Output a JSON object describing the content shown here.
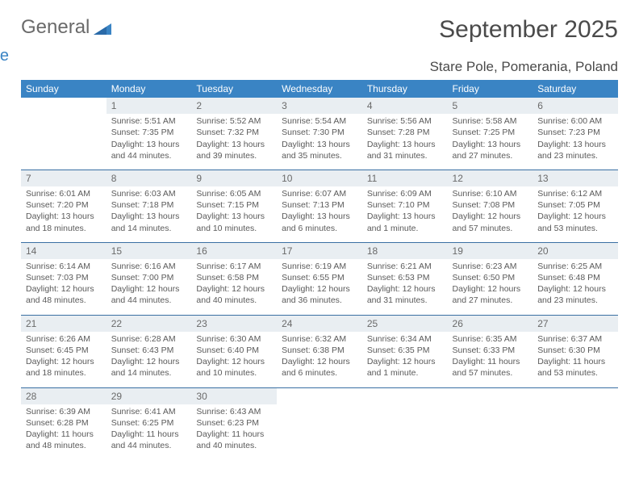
{
  "logo": {
    "text1": "General",
    "text2": "Blue"
  },
  "title": "September 2025",
  "location": "Stare Pole, Pomerania, Poland",
  "colors": {
    "header_bg": "#3a84c4",
    "header_text": "#ffffff",
    "band_bg": "#e9eef2",
    "band_border": "#3a6fa3",
    "body_text": "#5a5a5a",
    "title_text": "#4a4a4a"
  },
  "weekdays": [
    "Sunday",
    "Monday",
    "Tuesday",
    "Wednesday",
    "Thursday",
    "Friday",
    "Saturday"
  ],
  "weeks": [
    [
      null,
      {
        "n": "1",
        "sr": "Sunrise: 5:51 AM",
        "ss": "Sunset: 7:35 PM",
        "dl": "Daylight: 13 hours and 44 minutes."
      },
      {
        "n": "2",
        "sr": "Sunrise: 5:52 AM",
        "ss": "Sunset: 7:32 PM",
        "dl": "Daylight: 13 hours and 39 minutes."
      },
      {
        "n": "3",
        "sr": "Sunrise: 5:54 AM",
        "ss": "Sunset: 7:30 PM",
        "dl": "Daylight: 13 hours and 35 minutes."
      },
      {
        "n": "4",
        "sr": "Sunrise: 5:56 AM",
        "ss": "Sunset: 7:28 PM",
        "dl": "Daylight: 13 hours and 31 minutes."
      },
      {
        "n": "5",
        "sr": "Sunrise: 5:58 AM",
        "ss": "Sunset: 7:25 PM",
        "dl": "Daylight: 13 hours and 27 minutes."
      },
      {
        "n": "6",
        "sr": "Sunrise: 6:00 AM",
        "ss": "Sunset: 7:23 PM",
        "dl": "Daylight: 13 hours and 23 minutes."
      }
    ],
    [
      {
        "n": "7",
        "sr": "Sunrise: 6:01 AM",
        "ss": "Sunset: 7:20 PM",
        "dl": "Daylight: 13 hours and 18 minutes."
      },
      {
        "n": "8",
        "sr": "Sunrise: 6:03 AM",
        "ss": "Sunset: 7:18 PM",
        "dl": "Daylight: 13 hours and 14 minutes."
      },
      {
        "n": "9",
        "sr": "Sunrise: 6:05 AM",
        "ss": "Sunset: 7:15 PM",
        "dl": "Daylight: 13 hours and 10 minutes."
      },
      {
        "n": "10",
        "sr": "Sunrise: 6:07 AM",
        "ss": "Sunset: 7:13 PM",
        "dl": "Daylight: 13 hours and 6 minutes."
      },
      {
        "n": "11",
        "sr": "Sunrise: 6:09 AM",
        "ss": "Sunset: 7:10 PM",
        "dl": "Daylight: 13 hours and 1 minute."
      },
      {
        "n": "12",
        "sr": "Sunrise: 6:10 AM",
        "ss": "Sunset: 7:08 PM",
        "dl": "Daylight: 12 hours and 57 minutes."
      },
      {
        "n": "13",
        "sr": "Sunrise: 6:12 AM",
        "ss": "Sunset: 7:05 PM",
        "dl": "Daylight: 12 hours and 53 minutes."
      }
    ],
    [
      {
        "n": "14",
        "sr": "Sunrise: 6:14 AM",
        "ss": "Sunset: 7:03 PM",
        "dl": "Daylight: 12 hours and 48 minutes."
      },
      {
        "n": "15",
        "sr": "Sunrise: 6:16 AM",
        "ss": "Sunset: 7:00 PM",
        "dl": "Daylight: 12 hours and 44 minutes."
      },
      {
        "n": "16",
        "sr": "Sunrise: 6:17 AM",
        "ss": "Sunset: 6:58 PM",
        "dl": "Daylight: 12 hours and 40 minutes."
      },
      {
        "n": "17",
        "sr": "Sunrise: 6:19 AM",
        "ss": "Sunset: 6:55 PM",
        "dl": "Daylight: 12 hours and 36 minutes."
      },
      {
        "n": "18",
        "sr": "Sunrise: 6:21 AM",
        "ss": "Sunset: 6:53 PM",
        "dl": "Daylight: 12 hours and 31 minutes."
      },
      {
        "n": "19",
        "sr": "Sunrise: 6:23 AM",
        "ss": "Sunset: 6:50 PM",
        "dl": "Daylight: 12 hours and 27 minutes."
      },
      {
        "n": "20",
        "sr": "Sunrise: 6:25 AM",
        "ss": "Sunset: 6:48 PM",
        "dl": "Daylight: 12 hours and 23 minutes."
      }
    ],
    [
      {
        "n": "21",
        "sr": "Sunrise: 6:26 AM",
        "ss": "Sunset: 6:45 PM",
        "dl": "Daylight: 12 hours and 18 minutes."
      },
      {
        "n": "22",
        "sr": "Sunrise: 6:28 AM",
        "ss": "Sunset: 6:43 PM",
        "dl": "Daylight: 12 hours and 14 minutes."
      },
      {
        "n": "23",
        "sr": "Sunrise: 6:30 AM",
        "ss": "Sunset: 6:40 PM",
        "dl": "Daylight: 12 hours and 10 minutes."
      },
      {
        "n": "24",
        "sr": "Sunrise: 6:32 AM",
        "ss": "Sunset: 6:38 PM",
        "dl": "Daylight: 12 hours and 6 minutes."
      },
      {
        "n": "25",
        "sr": "Sunrise: 6:34 AM",
        "ss": "Sunset: 6:35 PM",
        "dl": "Daylight: 12 hours and 1 minute."
      },
      {
        "n": "26",
        "sr": "Sunrise: 6:35 AM",
        "ss": "Sunset: 6:33 PM",
        "dl": "Daylight: 11 hours and 57 minutes."
      },
      {
        "n": "27",
        "sr": "Sunrise: 6:37 AM",
        "ss": "Sunset: 6:30 PM",
        "dl": "Daylight: 11 hours and 53 minutes."
      }
    ],
    [
      {
        "n": "28",
        "sr": "Sunrise: 6:39 AM",
        "ss": "Sunset: 6:28 PM",
        "dl": "Daylight: 11 hours and 48 minutes."
      },
      {
        "n": "29",
        "sr": "Sunrise: 6:41 AM",
        "ss": "Sunset: 6:25 PM",
        "dl": "Daylight: 11 hours and 44 minutes."
      },
      {
        "n": "30",
        "sr": "Sunrise: 6:43 AM",
        "ss": "Sunset: 6:23 PM",
        "dl": "Daylight: 11 hours and 40 minutes."
      },
      null,
      null,
      null,
      null
    ]
  ]
}
